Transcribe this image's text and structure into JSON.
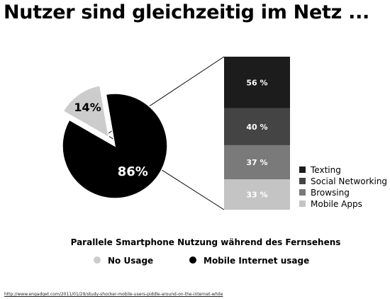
{
  "page": {
    "title": "Nutzer sind gleichzeitig im Netz ...",
    "source_url": "http://www.engadget.com/2011/01/29/study-shocker-mobile-users-piddle-around-on-the-internet-while"
  },
  "chart_data": [
    {
      "type": "pie",
      "title": "Parallele Smartphone Nutzung während des Fernsehens",
      "slices": [
        {
          "name": "No Usage",
          "value": 14,
          "label": "14%",
          "color": "#cccccc",
          "exploded": true
        },
        {
          "name": "Mobile Internet usage",
          "value": 86,
          "label": "86%",
          "color": "#000000",
          "exploded": false
        }
      ],
      "legend": {
        "placement": "bottom"
      }
    },
    {
      "type": "bar",
      "stacked": true,
      "categories": [
        "Mobile Apps",
        "Browsing",
        "Social Networking",
        "Texting"
      ],
      "values": [
        33,
        37,
        40,
        56
      ],
      "labels": [
        "33 %",
        "37 %",
        "40 %",
        "56 %"
      ],
      "colors": [
        "#c4c4c4",
        "#7a7a7a",
        "#444444",
        "#1c1c1c"
      ],
      "legend": {
        "placement": "right",
        "entries": [
          {
            "name": "Texting",
            "color": "#1c1c1c"
          },
          {
            "name": "Social Networking",
            "color": "#444444"
          },
          {
            "name": "Browsing",
            "color": "#7a7a7a"
          },
          {
            "name": "Mobile Apps",
            "color": "#c4c4c4"
          }
        ]
      }
    }
  ]
}
